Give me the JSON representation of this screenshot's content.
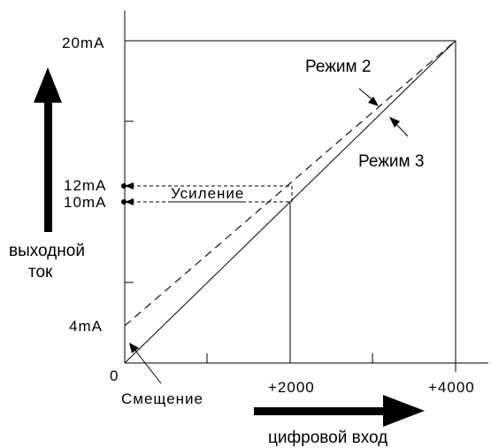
{
  "diagram": {
    "y_labels": {
      "top": "20mA",
      "upper": "12mA",
      "lower": "10mA",
      "bottom": "4mA",
      "origin": "0"
    },
    "x_labels": {
      "mid": "+2000",
      "end": "+4000"
    },
    "annotations": {
      "mode2": "Режим 2",
      "mode3": "Режим 3",
      "gain": "Усиление",
      "offset": "Смещение"
    },
    "axis_titles": {
      "y_line1": "выходной",
      "y_line2": "ток",
      "x": "цифровой вход"
    }
  }
}
